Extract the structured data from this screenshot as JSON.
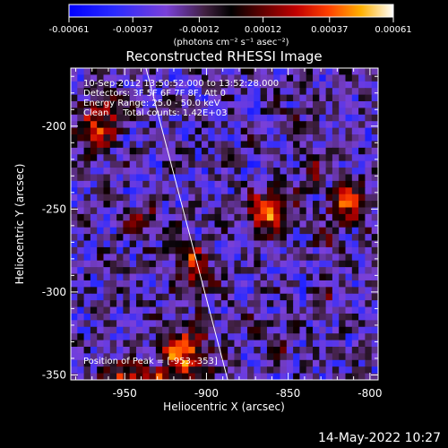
{
  "colorbar": {
    "tick_labels": [
      "-0.00061",
      "-0.00037",
      "-0.00012",
      "0.00012",
      "0.00037",
      "0.00061"
    ],
    "units": "(photons cm⁻² s⁻¹ asec⁻²)"
  },
  "title": "Reconstructed RHESSI Image",
  "info": {
    "line1": "10-Sep-2012 13:50:52.000 to 13:52:28.000",
    "line2": "Detectors: 3F 5F 6F 7F 8F, Att 0",
    "line3": "Energy Range: 25.0 - 50.0 keV",
    "line4": "Clean     Total counts: 1.42E+03",
    "peak": "Position of Peak = [-953,-353]"
  },
  "footer_timestamp": "14-May-2022 10:27",
  "chart_data": {
    "type": "heatmap",
    "title": "Reconstructed RHESSI Image",
    "xlabel": "Heliocentric X (arcsec)",
    "ylabel": "Heliocentric Y (arcsec)",
    "xlim": [
      -983,
      -795
    ],
    "ylim": [
      -353,
      -165
    ],
    "xticks": [
      -950,
      -900,
      -850,
      -800
    ],
    "xtick_labels": [
      "-950",
      "-900",
      "-850",
      "-800"
    ],
    "yticks": [
      -200,
      -250,
      -300,
      -350
    ],
    "ytick_labels": [
      "-200",
      "-250",
      "-300",
      "-350"
    ],
    "color_range": [
      -0.00061,
      0.00061
    ],
    "limb_line": {
      "x_top": -937,
      "x_bottom": -887
    },
    "sources": [
      {
        "x": -970,
        "y": -200,
        "sigma": 9,
        "amp": 0.00045
      },
      {
        "x": -960,
        "y": -185,
        "sigma": 6,
        "amp": 0.0003
      },
      {
        "x": -940,
        "y": -255,
        "sigma": 6,
        "amp": 0.0004
      },
      {
        "x": -913,
        "y": -275,
        "sigma": 6,
        "amp": 0.0004
      },
      {
        "x": -905,
        "y": -290,
        "sigma": 7,
        "amp": 0.00035
      },
      {
        "x": -915,
        "y": -335,
        "sigma": 10,
        "amp": 0.00061
      },
      {
        "x": -950,
        "y": -352,
        "sigma": 8,
        "amp": 0.00055
      },
      {
        "x": -932,
        "y": -355,
        "sigma": 6,
        "amp": 0.0005
      },
      {
        "x": -863,
        "y": -250,
        "sigma": 9,
        "amp": 0.0006
      },
      {
        "x": -838,
        "y": -225,
        "sigma": 5,
        "amp": 0.00035
      },
      {
        "x": -815,
        "y": -245,
        "sigma": 8,
        "amp": 0.00055
      },
      {
        "x": -828,
        "y": -265,
        "sigma": 5,
        "amp": 0.0003
      },
      {
        "x": -870,
        "y": -320,
        "sigma": 5,
        "amp": 0.0003
      },
      {
        "x": -855,
        "y": -330,
        "sigma": 4,
        "amp": 0.00025
      },
      {
        "x": -830,
        "y": -300,
        "sigma": 4,
        "amp": 0.00025
      },
      {
        "x": -850,
        "y": -195,
        "sigma": 4,
        "amp": 0.00025
      }
    ]
  }
}
